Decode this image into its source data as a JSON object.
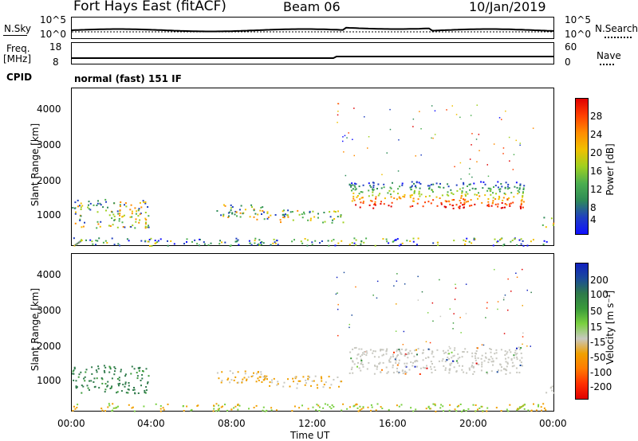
{
  "header": {
    "title": "Fort Hays East (fitACF)",
    "beam": "Beam 06",
    "date": "10/Jan/2019"
  },
  "noise_panel": {
    "left_label": "N.Sky",
    "right_label": "N.Search",
    "left_top": "10^5",
    "left_bottom": "10^0",
    "right_top": "10^5",
    "right_bottom": "10^0"
  },
  "freq_panel": {
    "left_label_top": "Freq.",
    "left_label_bottom": "[MHz]",
    "left_top": "18",
    "left_bottom": "8",
    "right_top": "60",
    "right_bottom": "0",
    "right_label": "Nave"
  },
  "cpid": {
    "label": "CPID",
    "mode": "normal (fast) 151 IF"
  },
  "colors": {
    "power": [
      "#1010ff",
      "#2040c0",
      "#2e8b57",
      "#4caf50",
      "#a0d020",
      "#f0c000",
      "#ff8c00",
      "#ff4000",
      "#e00000"
    ],
    "velocity": [
      "#1020c0",
      "#1a4a9a",
      "#2e7a4a",
      "#3a9a3a",
      "#7ad040",
      "#c8c8c0",
      "#f0a000",
      "#ff7a00",
      "#ff3000",
      "#e00000"
    ]
  },
  "chart_data": [
    {
      "type": "heatmap",
      "panel": "power",
      "ylabel": "Slant Range [km]",
      "yticks": [
        "1000",
        "2000",
        "3000",
        "4000"
      ],
      "ylim": [
        200,
        4600
      ],
      "xlim": [
        0,
        24
      ],
      "colorbar_label": "Power [dB]",
      "colorbar_ticks": [
        "4",
        "8",
        "12",
        "16",
        "20",
        "24",
        "28"
      ],
      "colorbar_range": [
        0,
        30
      ]
    },
    {
      "type": "heatmap",
      "panel": "velocity",
      "ylabel": "Slant Range [km]",
      "yticks": [
        "1000",
        "2000",
        "3000",
        "4000"
      ],
      "ylim": [
        200,
        4600
      ],
      "xlim": [
        0,
        24
      ],
      "xlabel": "Time UT",
      "xticks": [
        "00:00",
        "04:00",
        "08:00",
        "12:00",
        "16:00",
        "20:00",
        "00:00"
      ],
      "colorbar_label": "Velocity [m s⁻¹]",
      "colorbar_ticks": [
        "200",
        "100",
        "50",
        "15",
        "-15",
        "-50",
        "-100",
        "-200"
      ]
    }
  ]
}
